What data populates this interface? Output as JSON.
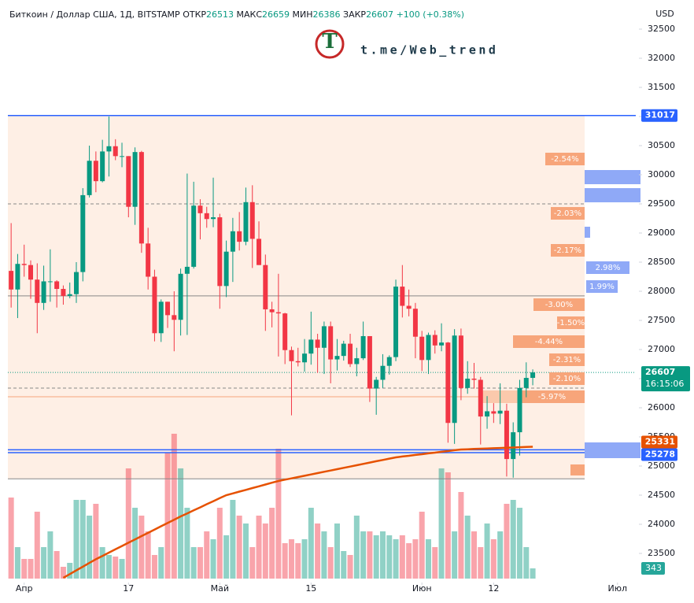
{
  "header": {
    "symbol": "Биткоин / Доллар США, 1Д, BITSTAMP",
    "open_label": "ОТКР",
    "high_label": "МАКС",
    "low_label": "МИН",
    "close_label": "ЗАКР",
    "change": "+100",
    "change_pct": "(+0.38%)"
  },
  "watermark": {
    "logo": "T",
    "text": "t.me/Web_trend"
  },
  "chart_data": {
    "type": "candlestick",
    "currency": "USD",
    "up_color": "#089981",
    "down_color": "#f23645",
    "open": [
      28350,
      28030,
      28470,
      28450,
      28200,
      27800,
      28170,
      28170,
      28040,
      27920,
      27950,
      28330,
      29650,
      30240,
      29890,
      30400,
      30490,
      30320,
      30320,
      29450,
      30390,
      28820,
      28250,
      27280,
      27820,
      27590,
      27510,
      28300,
      28420,
      29470,
      29340,
      29240,
      29270,
      28090,
      28680,
      29030,
      28850,
      29530,
      28900,
      28450,
      27690,
      27640,
      27620,
      26990,
      26800,
      26780,
      26930,
      27170,
      27030,
      27400,
      26830,
      26890,
      27100,
      26750,
      26850,
      27230,
      26330,
      26480,
      26720,
      26870,
      28080,
      27750,
      27700,
      27220,
      26820,
      27250,
      27070,
      27120,
      25740,
      27240,
      26340,
      26500,
      26480,
      25850,
      25940,
      25900,
      25950,
      25120,
      25580,
      26340,
      26513
    ],
    "high": [
      29170,
      28640,
      28800,
      28530,
      28480,
      28440,
      28720,
      28190,
      28100,
      28150,
      28500,
      29770,
      30500,
      30400,
      30600,
      31000,
      30610,
      30550,
      30320,
      30470,
      30410,
      29090,
      28370,
      27860,
      27820,
      28000,
      28390,
      30020,
      29880,
      29580,
      29450,
      29950,
      29330,
      28870,
      29260,
      29360,
      29780,
      29820,
      29200,
      28630,
      27820,
      28300,
      27630,
      27050,
      27030,
      27180,
      27650,
      27270,
      27480,
      27480,
      27180,
      27150,
      27270,
      27030,
      27480,
      27230,
      26530,
      26920,
      26900,
      28200,
      28450,
      28030,
      27800,
      27320,
      27290,
      27330,
      27450,
      27130,
      27350,
      27360,
      26800,
      26770,
      26530,
      26200,
      26080,
      26420,
      26070,
      25750,
      26480,
      26780,
      26659
    ],
    "low": [
      27720,
      27540,
      28250,
      27870,
      27280,
      27680,
      27820,
      27720,
      27770,
      27880,
      27800,
      28170,
      29610,
      29700,
      29870,
      29970,
      30250,
      30130,
      29270,
      29140,
      28660,
      28030,
      27140,
      27130,
      27370,
      26970,
      27240,
      27250,
      28390,
      28890,
      29090,
      29100,
      27700,
      27900,
      28160,
      28700,
      28790,
      28400,
      28450,
      27320,
      27380,
      26880,
      26750,
      25870,
      26710,
      26620,
      26740,
      26600,
      26580,
      26420,
      26640,
      26810,
      26700,
      26540,
      26820,
      26100,
      25880,
      26340,
      26570,
      26800,
      27550,
      27570,
      26850,
      26630,
      26580,
      26930,
      26970,
      25400,
      25380,
      26130,
      26240,
      26330,
      25370,
      25640,
      25740,
      25720,
      24820,
      24800,
      25180,
      26180,
      26386
    ],
    "close": [
      28030,
      28470,
      28450,
      28200,
      27800,
      28170,
      28170,
      28040,
      27920,
      27950,
      28330,
      29650,
      30240,
      29890,
      30400,
      30490,
      30320,
      30320,
      29450,
      30390,
      28820,
      28250,
      27280,
      27820,
      27590,
      27510,
      28300,
      28420,
      29470,
      29340,
      29240,
      29270,
      28090,
      28680,
      29030,
      28850,
      29530,
      28900,
      28450,
      27690,
      27640,
      27620,
      26990,
      26800,
      26780,
      26930,
      27170,
      27030,
      27400,
      26830,
      26890,
      27100,
      26750,
      26850,
      27230,
      26330,
      26480,
      26720,
      26870,
      28080,
      27750,
      27700,
      27220,
      26820,
      27250,
      27070,
      27120,
      25740,
      27240,
      26340,
      26500,
      26480,
      25850,
      25940,
      25900,
      25950,
      25120,
      25580,
      26340,
      26513,
      26607
    ],
    "volume": [
      2719,
      1056,
      660,
      660,
      2244,
      1056,
      1584,
      924,
      396,
      528,
      2640,
      2640,
      2112,
      2508,
      1056,
      792,
      739,
      660,
      3696,
      2376,
      2112,
      1584,
      792,
      1056,
      4224,
      4858,
      3696,
      2376,
      1056,
      1056,
      1584,
      1320,
      2376,
      1452,
      2640,
      2112,
      1848,
      1056,
      2112,
      1848,
      2376,
      4356,
      1188,
      1320,
      1188,
      1320,
      2376,
      1848,
      1584,
      1056,
      1848,
      924,
      792,
      2112,
      1584,
      1584,
      1452,
      1584,
      1452,
      1320,
      1452,
      1188,
      1320,
      2244,
      1320,
      1056,
      3696,
      3564,
      1584,
      2904,
      2112,
      1584,
      1056,
      1848,
      1320,
      1584,
      2508,
      2640,
      2376,
      1056,
      343
    ],
    "ma": [
      null,
      null,
      null,
      null,
      null,
      null,
      null,
      null,
      23081,
      23145,
      23209,
      23272,
      23336,
      23400,
      23457,
      23514,
      23570,
      23627,
      23684,
      23740,
      23797,
      23853,
      23910,
      23966,
      24022,
      24079,
      24135,
      24187,
      24239,
      24291,
      24344,
      24396,
      24448,
      24500,
      24530,
      24561,
      24591,
      24621,
      24652,
      24682,
      24713,
      24743,
      24766,
      24788,
      24811,
      24833,
      24856,
      24878,
      24901,
      24923,
      24946,
      24969,
      24991,
      25014,
      25036,
      25059,
      25082,
      25104,
      25127,
      25149,
      25163,
      25176,
      25190,
      25203,
      25217,
      25230,
      25244,
      25257,
      25271,
      25284,
      25288,
      25293,
      25297,
      25301,
      25305,
      25310,
      25314,
      25318,
      25323,
      25327,
      25331
    ],
    "ma_color": "#e65100",
    "countdown": "16:15:06",
    "xlim": [
      -0.5,
      95.8
    ],
    "xticks": [
      {
        "value": 2,
        "label": "Апр"
      },
      {
        "value": 18,
        "label": "17"
      },
      {
        "value": 32,
        "label": "Май"
      },
      {
        "value": 46,
        "label": "15"
      },
      {
        "value": 63,
        "label": "Июн"
      },
      {
        "value": 74,
        "label": "12"
      },
      {
        "value": 93,
        "label": "Июл"
      }
    ],
    "ylim": [
      23000,
      33000
    ],
    "yticks": [
      32500,
      32000,
      31500,
      31000,
      30500,
      30000,
      29500,
      29000,
      28500,
      28000,
      27500,
      27000,
      26500,
      26000,
      25500,
      25000,
      24500,
      24000,
      23500
    ],
    "zone": [
      24780,
      31017
    ],
    "zone_color": "#fde9dc",
    "levels": [
      {
        "value": 31017,
        "color": "#2962ff",
        "style": "solid",
        "tag": true
      },
      {
        "value": 29500,
        "color": "#888888",
        "style": "dashed"
      },
      {
        "value": 27920,
        "color": "#888888",
        "style": "solid"
      },
      {
        "value": 26338,
        "color": "#888888",
        "style": "dashed"
      },
      {
        "value": 26189,
        "color": "#f7a57a",
        "style": "solid"
      },
      {
        "value": 25278,
        "color": "#2962ff",
        "style": "solid",
        "tag": true
      },
      {
        "value": 25230,
        "color": "#2962ff",
        "style": "solid"
      },
      {
        "value": 24780,
        "color": "#888888",
        "style": "solid"
      }
    ],
    "annotations": [
      "-2.54%",
      "-2.03%",
      "-2.17%",
      "2.98%",
      "1.99%",
      "-3.00%",
      "-1.50%",
      "-4.44%",
      "-2.31%",
      "-2.10%",
      "-5.97%"
    ]
  }
}
